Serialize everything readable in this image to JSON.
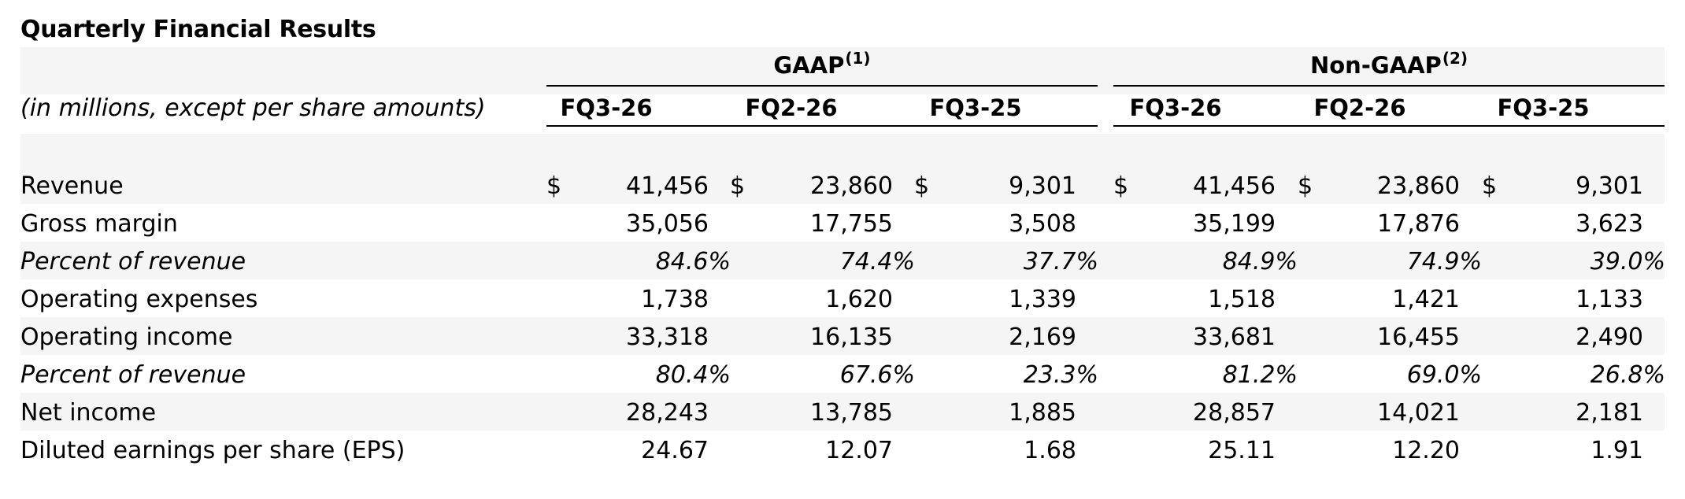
{
  "title": "Quarterly Financial Results",
  "units_label": "(in millions, except per share amounts)",
  "groups": [
    {
      "name": "GAAP",
      "note": "(1)"
    },
    {
      "name": "Non-GAAP",
      "note": "(2)"
    }
  ],
  "columns": [
    "FQ3-26",
    "FQ2-26",
    "FQ3-25",
    "FQ3-26",
    "FQ2-26",
    "FQ3-25"
  ],
  "currency_symbol": "$",
  "rows": [
    {
      "label": "Revenue",
      "values": [
        "41,456",
        "23,860",
        "9,301",
        "41,456",
        "23,860",
        "9,301"
      ]
    },
    {
      "label": "Gross margin",
      "values": [
        "35,056",
        "17,755",
        "3,508",
        "35,199",
        "17,876",
        "3,623"
      ]
    },
    {
      "label": "Percent of revenue",
      "values": [
        "84.6%",
        "74.4%",
        "37.7%",
        "84.9%",
        "74.9%",
        "39.0%"
      ]
    },
    {
      "label": "Operating expenses",
      "values": [
        "1,738",
        "1,620",
        "1,339",
        "1,518",
        "1,421",
        "1,133"
      ]
    },
    {
      "label": "Operating income",
      "values": [
        "33,318",
        "16,135",
        "2,169",
        "33,681",
        "16,455",
        "2,490"
      ]
    },
    {
      "label": "Percent of revenue",
      "values": [
        "80.4%",
        "67.6%",
        "23.3%",
        "81.2%",
        "69.0%",
        "26.8%"
      ]
    },
    {
      "label": "Net income",
      "values": [
        "28,243",
        "13,785",
        "1,885",
        "28,857",
        "14,021",
        "2,181"
      ]
    },
    {
      "label": "Diluted earnings per share (EPS)",
      "values": [
        "24.67",
        "12.07",
        "1.68",
        "25.11",
        "12.20",
        "1.91"
      ]
    }
  ]
}
